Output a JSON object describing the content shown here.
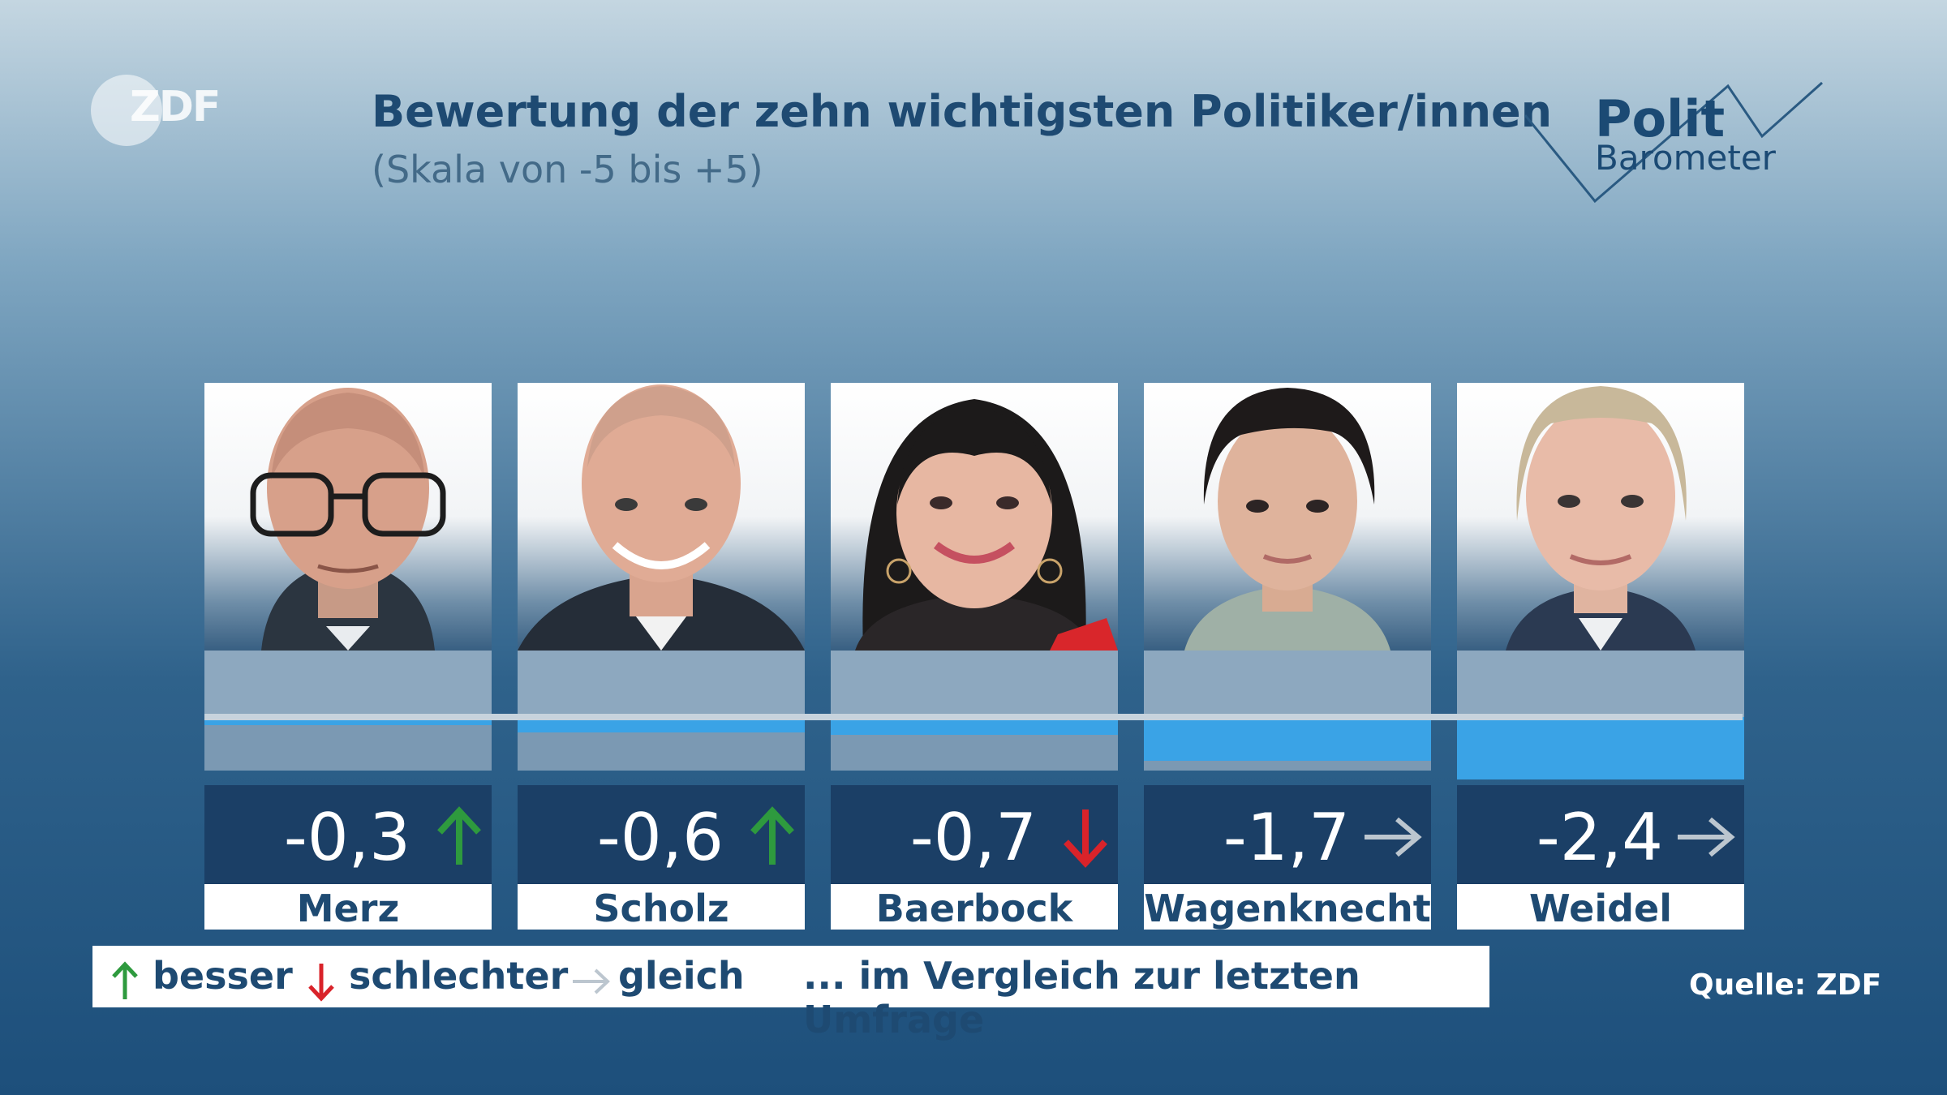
{
  "branding": {
    "zdf_logo": "ZDF",
    "politbarometer_line1": "Polit",
    "politbarometer_line2": "Barometer"
  },
  "header": {
    "title": "Bewertung der zehn wichtigsten Politiker/innen",
    "subtitle": "(Skala von -5 bis +5)"
  },
  "chart_data": {
    "type": "bar",
    "title": "Bewertung der zehn wichtigsten Politiker/innen",
    "subtitle": "(Skala von -5 bis +5)",
    "categories": [
      "Merz",
      "Scholz",
      "Baerbock",
      "Wagenknecht",
      "Weidel"
    ],
    "values": [
      -0.3,
      -0.6,
      -0.7,
      -1.7,
      -2.4
    ],
    "value_labels": [
      "-0,3",
      "-0,6",
      "-0,7",
      "-1,7",
      "-2,4"
    ],
    "trend": [
      "besser",
      "besser",
      "schlechter",
      "gleich",
      "gleich"
    ],
    "ylim": [
      -5,
      5
    ],
    "bar_color": "#3aa3e6",
    "legend_position": "bottom"
  },
  "legend": {
    "better_label": "besser",
    "worse_label": "schlechter",
    "same_label": "gleich",
    "comparison_note": "... im Vergleich zur letzten Umfrage",
    "colors": {
      "better": "#2e9a3e",
      "worse": "#d9232a",
      "same": "#bcc6cf"
    }
  },
  "source": "Quelle: ZDF",
  "icons": {
    "better": "arrow-up-icon",
    "worse": "arrow-down-icon",
    "same": "arrow-right-icon"
  }
}
